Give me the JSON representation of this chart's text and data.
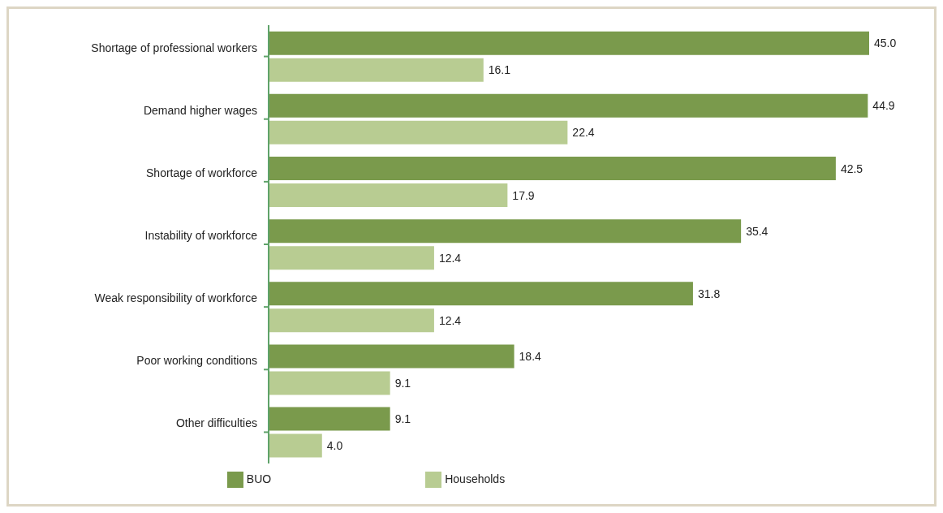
{
  "chart_data": {
    "type": "bar",
    "orientation": "horizontal",
    "categories": [
      "Shortage of professional workers",
      "Demand higher wages",
      "Shortage of workforce",
      "Instability of workforce",
      "Weak responsibility of workforce",
      "Poor working conditions",
      "Other difficulties"
    ],
    "series": [
      {
        "name": "BUO",
        "color": "#7a9a4c",
        "values": [
          45.0,
          44.9,
          42.5,
          35.4,
          31.8,
          18.4,
          9.1
        ],
        "value_labels": [
          "45.0",
          "44.9",
          "42.5",
          "35.4",
          "31.8",
          "18.4",
          "9.1"
        ]
      },
      {
        "name": "Households",
        "color": "#b8cc92",
        "values": [
          16.1,
          22.4,
          17.9,
          12.4,
          12.4,
          9.1,
          4.0
        ],
        "value_labels": [
          "16.1",
          "22.4",
          "17.9",
          "12.4",
          "12.4",
          "9.1",
          "4.0"
        ]
      }
    ],
    "legend": "bottom"
  }
}
